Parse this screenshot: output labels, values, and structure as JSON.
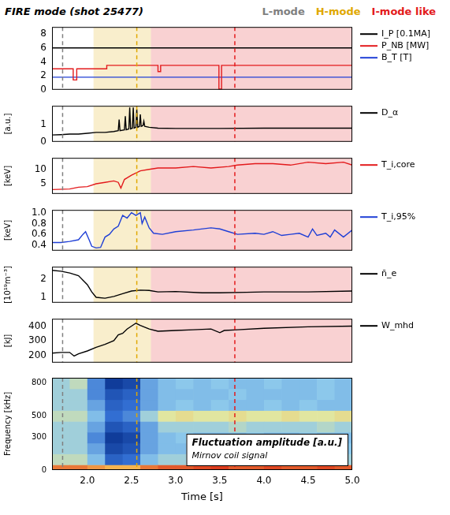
{
  "title": "FIRE mode (shot 25477)",
  "phases": [
    {
      "name": "L-mode",
      "color": "#808080",
      "line_at": 1.72
    },
    {
      "name": "H-mode",
      "color": "#e0a800",
      "line_at": 2.56,
      "from": 2.07,
      "to": 2.72
    },
    {
      "name": "I-mode like",
      "color": "#e31a1c",
      "line_at": 3.67,
      "from": 2.72,
      "to": 5.0
    }
  ],
  "chart_data": [
    {
      "type": "line",
      "xlim": [
        1.6,
        5.0
      ],
      "ylim": [
        0,
        9
      ],
      "yticks": [
        0,
        2,
        4,
        6,
        8
      ],
      "grid": false,
      "legend": "right",
      "series": [
        {
          "name": "I_P [0.1MA]",
          "color": "#000000",
          "x": [
            1.6,
            5.0
          ],
          "values": [
            6,
            6
          ]
        },
        {
          "name": "P_NB [MW]",
          "color": "#e31a1c",
          "x": [
            1.6,
            1.84,
            1.84,
            1.88,
            1.88,
            2.22,
            2.22,
            2.8,
            2.8,
            2.83,
            2.83,
            3.49,
            3.49,
            3.52,
            3.52,
            5.0
          ],
          "values": [
            3.0,
            3.0,
            1.4,
            1.4,
            3.0,
            3.0,
            3.5,
            3.5,
            2.6,
            2.6,
            3.5,
            3.5,
            0.1,
            0.1,
            3.5,
            3.5
          ]
        },
        {
          "name": "B_T [T]",
          "color": "#1f3fd6",
          "x": [
            1.6,
            5.0
          ],
          "values": [
            1.8,
            1.8
          ]
        }
      ]
    },
    {
      "type": "line",
      "xlim": [
        1.6,
        5.0
      ],
      "ylim": [
        0,
        2.1
      ],
      "yticks": [
        0,
        1
      ],
      "y_label": "[a.u.]",
      "grid": false,
      "legend": "right",
      "series": [
        {
          "name": "D_α",
          "color": "#000000",
          "x": [
            1.6,
            1.7,
            1.8,
            1.9,
            2.0,
            2.1,
            2.2,
            2.3,
            2.35,
            2.36,
            2.37,
            2.42,
            2.43,
            2.44,
            2.47,
            2.48,
            2.49,
            2.51,
            2.52,
            2.53,
            2.55,
            2.56,
            2.57,
            2.59,
            2.6,
            2.61,
            2.63,
            2.64,
            2.65,
            2.7,
            2.8,
            3.0,
            3.5,
            4.0,
            4.5,
            5.0
          ],
          "values": [
            0.4,
            0.42,
            0.45,
            0.45,
            0.5,
            0.55,
            0.55,
            0.6,
            0.65,
            1.3,
            0.65,
            0.7,
            1.5,
            0.7,
            0.75,
            2.0,
            0.75,
            0.8,
            2.0,
            0.8,
            0.85,
            1.9,
            0.85,
            0.9,
            1.6,
            0.9,
            0.95,
            1.2,
            0.9,
            0.85,
            0.8,
            0.78,
            0.78,
            0.8,
            0.8,
            0.8
          ]
        }
      ]
    },
    {
      "type": "line",
      "xlim": [
        1.6,
        5.0
      ],
      "ylim": [
        1.5,
        14
      ],
      "yticks": [
        5,
        10
      ],
      "y_label": "[keV]",
      "grid": false,
      "legend": "right",
      "series": [
        {
          "name": "T_i,core",
          "color": "#e31a1c",
          "x": [
            1.6,
            1.8,
            1.9,
            2.0,
            2.1,
            2.2,
            2.3,
            2.35,
            2.38,
            2.42,
            2.5,
            2.6,
            2.7,
            2.8,
            3.0,
            3.2,
            3.4,
            3.6,
            3.7,
            3.9,
            4.1,
            4.3,
            4.5,
            4.7,
            4.9,
            5.0
          ],
          "values": [
            3.0,
            3.2,
            3.8,
            4.0,
            5.0,
            5.5,
            6.0,
            5.5,
            3.5,
            6.5,
            8.0,
            9.5,
            10.0,
            10.5,
            10.5,
            11.0,
            10.5,
            11.0,
            11.5,
            12.0,
            12.0,
            11.5,
            12.5,
            12.0,
            12.5,
            11.5
          ]
        }
      ]
    },
    {
      "type": "line",
      "xlim": [
        1.6,
        5.0
      ],
      "ylim": [
        0.3,
        1.05
      ],
      "yticks": [
        0.4,
        0.6,
        0.8,
        {
          "value": 1,
          "label": "1.0"
        }
      ],
      "y_label": "[keV]",
      "grid": false,
      "legend": "right",
      "series": [
        {
          "name": "T_i,95%",
          "color": "#1f3fd6",
          "x": [
            1.6,
            1.7,
            1.8,
            1.9,
            1.95,
            1.98,
            2.02,
            2.05,
            2.1,
            2.15,
            2.2,
            2.25,
            2.3,
            2.35,
            2.4,
            2.45,
            2.5,
            2.55,
            2.6,
            2.62,
            2.65,
            2.7,
            2.75,
            2.85,
            3.0,
            3.2,
            3.4,
            3.5,
            3.6,
            3.7,
            3.9,
            4.0,
            4.1,
            4.2,
            4.3,
            4.4,
            4.5,
            4.55,
            4.6,
            4.7,
            4.75,
            4.8,
            4.9,
            5.0
          ],
          "values": [
            0.45,
            0.45,
            0.47,
            0.5,
            0.6,
            0.65,
            0.5,
            0.38,
            0.35,
            0.36,
            0.55,
            0.6,
            0.7,
            0.75,
            0.95,
            0.9,
            1.0,
            0.95,
            1.0,
            0.8,
            0.92,
            0.72,
            0.62,
            0.6,
            0.65,
            0.68,
            0.72,
            0.7,
            0.65,
            0.6,
            0.62,
            0.6,
            0.65,
            0.58,
            0.6,
            0.62,
            0.55,
            0.7,
            0.58,
            0.62,
            0.55,
            0.68,
            0.55,
            0.68
          ]
        }
      ]
    },
    {
      "type": "line",
      "xlim": [
        1.6,
        5.0
      ],
      "ylim": [
        0.7,
        2.7
      ],
      "yticks": [
        1,
        2
      ],
      "y_label": "[10¹⁹m⁻³]",
      "grid": false,
      "legend": "right",
      "series": [
        {
          "name": "n̄_e",
          "color": "#000000",
          "x": [
            1.6,
            1.7,
            1.8,
            1.9,
            2.0,
            2.05,
            2.1,
            2.2,
            2.3,
            2.4,
            2.5,
            2.6,
            2.7,
            2.8,
            3.0,
            3.3,
            3.5,
            3.8,
            4.0,
            4.5,
            5.0
          ],
          "values": [
            2.5,
            2.45,
            2.35,
            2.2,
            1.7,
            1.3,
            1.0,
            0.95,
            1.05,
            1.2,
            1.35,
            1.4,
            1.38,
            1.3,
            1.32,
            1.25,
            1.25,
            1.28,
            1.3,
            1.3,
            1.35
          ]
        }
      ]
    },
    {
      "type": "line",
      "xlim": [
        1.6,
        5.0
      ],
      "ylim": [
        150,
        450
      ],
      "yticks": [
        200,
        300,
        400
      ],
      "y_label": "[kJ]",
      "grid": false,
      "legend": "right",
      "series": [
        {
          "name": "W_mhd",
          "color": "#000000",
          "x": [
            1.6,
            1.7,
            1.8,
            1.85,
            1.9,
            2.0,
            2.1,
            2.2,
            2.3,
            2.35,
            2.4,
            2.45,
            2.5,
            2.55,
            2.6,
            2.7,
            2.8,
            3.0,
            3.2,
            3.4,
            3.5,
            3.55,
            3.7,
            4.0,
            4.5,
            5.0
          ],
          "values": [
            215,
            220,
            220,
            195,
            210,
            230,
            255,
            275,
            300,
            340,
            350,
            380,
            400,
            420,
            405,
            380,
            365,
            370,
            375,
            380,
            355,
            370,
            375,
            385,
            395,
            400
          ]
        }
      ]
    },
    {
      "type": "heatmap",
      "xlim": [
        1.6,
        5.0
      ],
      "xticks": [
        {
          "value": 2,
          "label": "2.0"
        },
        2.5,
        {
          "value": 3,
          "label": "3.0"
        },
        3.5,
        {
          "value": 4,
          "label": "4.0"
        },
        4.5,
        {
          "value": 5,
          "label": "5.0"
        }
      ],
      "x_label": "Time [s]",
      "ylim": [
        0,
        850
      ],
      "yticks": [
        0,
        300,
        500,
        800
      ],
      "y_label": "Frequency [kHz]",
      "grid": false,
      "annotations": [
        "Fluctuation amplitude [a.u.]",
        "Mirnov coil signal"
      ],
      "x_bins": [
        1.6,
        1.8,
        2.0,
        2.2,
        2.4,
        2.6,
        2.8,
        3.0,
        3.2,
        3.4,
        3.6,
        3.8,
        4.0,
        4.2,
        4.4,
        4.6,
        4.8,
        5.0
      ],
      "y_bins": [
        0,
        50,
        150,
        250,
        350,
        450,
        550,
        650,
        750,
        850
      ],
      "cells": [
        [
          0.8,
          0.5,
          0.45,
          0.45,
          0.45,
          0.5,
          0.45,
          0.45,
          0.45
        ],
        [
          0.8,
          0.5,
          0.45,
          0.45,
          0.45,
          0.5,
          0.45,
          0.45,
          0.5
        ],
        [
          0.75,
          0.4,
          0.35,
          0.3,
          0.35,
          0.4,
          0.35,
          0.3,
          0.3
        ],
        [
          0.7,
          0.2,
          0.1,
          0.05,
          0.15,
          0.25,
          0.2,
          0.15,
          0.05
        ],
        [
          0.7,
          0.25,
          0.15,
          0.1,
          0.2,
          0.3,
          0.25,
          0.2,
          0.1
        ],
        [
          0.8,
          0.4,
          0.35,
          0.35,
          0.35,
          0.45,
          0.35,
          0.35,
          0.35
        ],
        [
          0.85,
          0.45,
          0.4,
          0.4,
          0.45,
          0.55,
          0.4,
          0.4,
          0.4
        ],
        [
          0.85,
          0.45,
          0.4,
          0.42,
          0.45,
          0.58,
          0.42,
          0.4,
          0.42
        ],
        [
          0.88,
          0.45,
          0.4,
          0.4,
          0.45,
          0.55,
          0.4,
          0.4,
          0.4
        ],
        [
          0.9,
          0.45,
          0.42,
          0.4,
          0.45,
          0.55,
          0.42,
          0.4,
          0.42
        ],
        [
          0.85,
          0.45,
          0.4,
          0.4,
          0.48,
          0.58,
          0.4,
          0.42,
          0.4
        ],
        [
          0.85,
          0.45,
          0.4,
          0.42,
          0.45,
          0.55,
          0.4,
          0.4,
          0.4
        ],
        [
          0.88,
          0.45,
          0.42,
          0.4,
          0.45,
          0.55,
          0.42,
          0.4,
          0.42
        ],
        [
          0.85,
          0.45,
          0.4,
          0.4,
          0.45,
          0.58,
          0.4,
          0.4,
          0.4
        ],
        [
          0.85,
          0.48,
          0.4,
          0.42,
          0.45,
          0.55,
          0.42,
          0.4,
          0.4
        ],
        [
          0.88,
          0.45,
          0.4,
          0.4,
          0.48,
          0.55,
          0.4,
          0.42,
          0.42
        ],
        [
          0.85,
          0.45,
          0.42,
          0.4,
          0.45,
          0.58,
          0.4,
          0.4,
          0.4
        ]
      ]
    }
  ]
}
